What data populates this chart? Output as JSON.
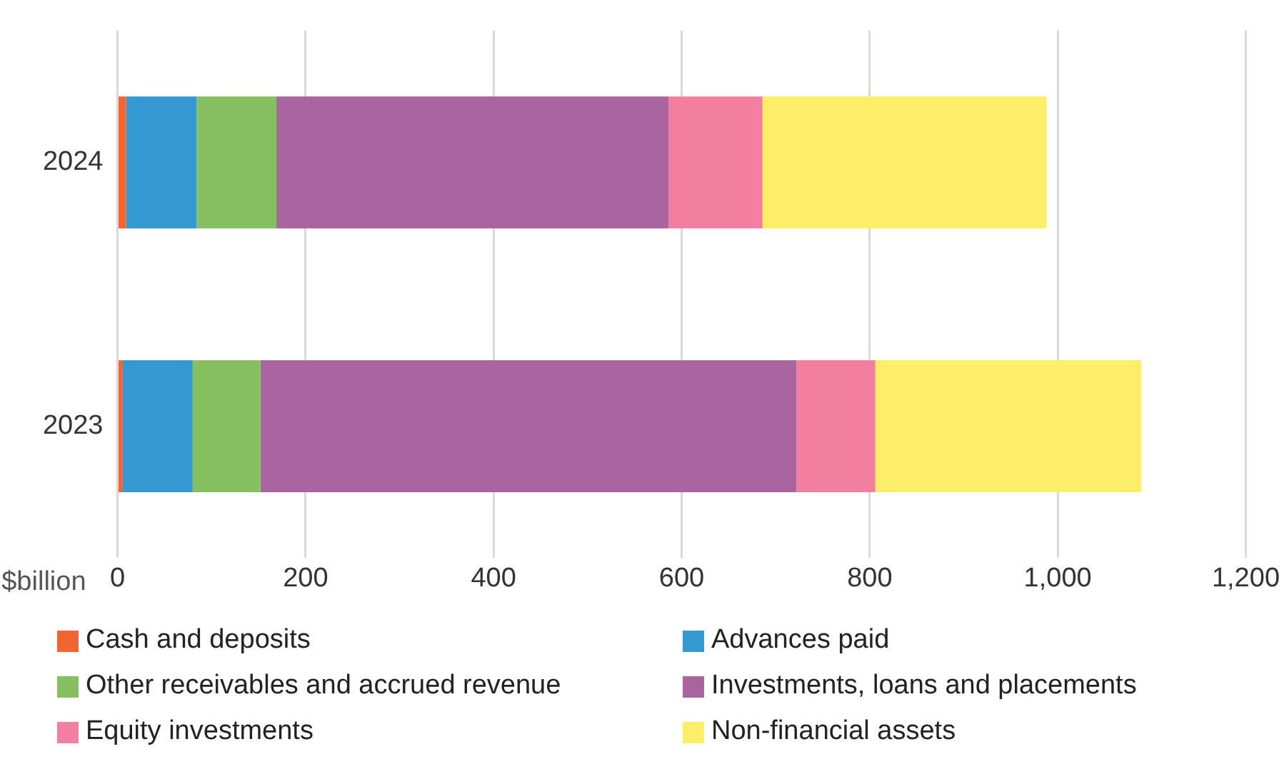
{
  "chart_data": {
    "type": "bar",
    "orientation": "horizontal",
    "stacked": true,
    "xlabel": "$billion",
    "categories": [
      "2024",
      "2023"
    ],
    "series": [
      {
        "name": "Cash and deposits",
        "color": "#f26531",
        "values": [
          9,
          5
        ]
      },
      {
        "name": "Advances paid",
        "color": "#3399d0",
        "values": [
          75,
          75
        ]
      },
      {
        "name": "Other receivables and accrued revenue",
        "color": "#86bf5f",
        "values": [
          85,
          72
        ]
      },
      {
        "name": "Investments, loans and placements",
        "color": "#aa64a0",
        "values": [
          417,
          570
        ]
      },
      {
        "name": "Equity investments",
        "color": "#f27fa0",
        "values": [
          100,
          84
        ]
      },
      {
        "name": "Non-financial assets",
        "color": "#fdee6a",
        "values": [
          302,
          283
        ]
      }
    ],
    "xlim": [
      0,
      1200
    ],
    "xticks": [
      0,
      {
        "value": 200,
        "label": "200"
      },
      {
        "value": 400,
        "label": "400"
      },
      {
        "value": 600,
        "label": "600"
      },
      {
        "value": 800,
        "label": "800"
      },
      {
        "value": 1000,
        "label": "1,000"
      },
      {
        "value": 1200,
        "label": "1,200"
      }
    ],
    "grid": "x",
    "legend": "bottom"
  }
}
